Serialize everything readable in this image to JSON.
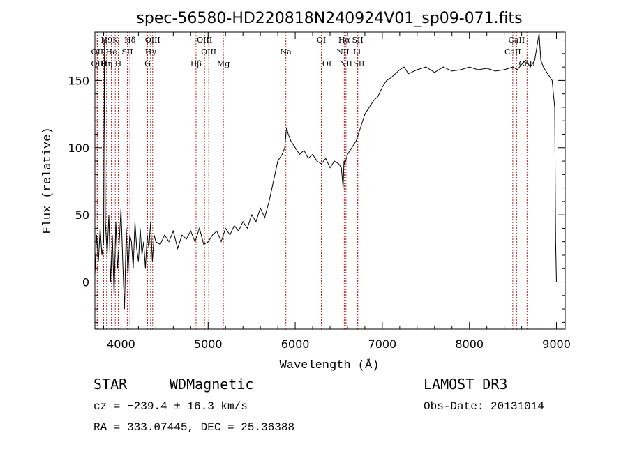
{
  "chart_data": {
    "type": "line",
    "title": "spec-56580-HD220818N240924V01_sp09-071.fits",
    "xlabel": "Wavelength (Å)",
    "ylabel": "Flux (relative)",
    "xlim": [
      3700,
      9100
    ],
    "ylim": [
      -35,
      186
    ],
    "x_ticks": [
      4000,
      5000,
      6000,
      7000,
      8000,
      9000
    ],
    "y_ticks": [
      0,
      50,
      100,
      150
    ],
    "grid": false,
    "line_color": "#000000",
    "marker_color": "#b22222",
    "series": [
      {
        "x": [
          3700,
          3720,
          3740,
          3760,
          3780,
          3800,
          3810,
          3820,
          3840,
          3860,
          3880,
          3900,
          3920,
          3940,
          3960,
          3980,
          4000,
          4020,
          4040,
          4060,
          4080,
          4100,
          4120,
          4140,
          4160,
          4180,
          4200,
          4220,
          4240,
          4260,
          4280,
          4300,
          4320,
          4340,
          4360,
          4380,
          4400,
          4450,
          4500,
          4550,
          4600,
          4650,
          4700,
          4750,
          4800,
          4850,
          4900,
          4950,
          5000,
          5050,
          5100,
          5150,
          5200,
          5250,
          5300,
          5350,
          5400,
          5450,
          5500,
          5550,
          5600,
          5650,
          5700,
          5750,
          5800,
          5850,
          5880,
          5900,
          5920,
          5950,
          6000,
          6050,
          6100,
          6150,
          6200,
          6250,
          6300,
          6350,
          6400,
          6450,
          6500,
          6530,
          6550,
          6560,
          6570,
          6600,
          6650,
          6700,
          6750,
          6800,
          6850,
          6900,
          6950,
          7000,
          7050,
          7100,
          7150,
          7200,
          7250,
          7300,
          7400,
          7500,
          7600,
          7700,
          7800,
          7900,
          8000,
          8100,
          8200,
          8300,
          8400,
          8500,
          8550,
          8600,
          8650,
          8700,
          8750,
          8800,
          8820,
          8850,
          8900,
          8950,
          8980,
          8990,
          9000
        ],
        "y": [
          5,
          35,
          15,
          40,
          20,
          30,
          180,
          45,
          20,
          50,
          0,
          35,
          -10,
          45,
          10,
          30,
          55,
          15,
          -20,
          40,
          5,
          35,
          30,
          10,
          45,
          25,
          15,
          40,
          20,
          30,
          10,
          35,
          25,
          45,
          15,
          35,
          30,
          28,
          35,
          30,
          38,
          25,
          35,
          32,
          38,
          30,
          40,
          28,
          30,
          35,
          38,
          30,
          40,
          35,
          42,
          38,
          45,
          40,
          50,
          45,
          55,
          48,
          60,
          75,
          90,
          95,
          100,
          115,
          110,
          105,
          100,
          95,
          98,
          92,
          95,
          90,
          88,
          92,
          85,
          90,
          88,
          85,
          70,
          90,
          88,
          95,
          100,
          105,
          115,
          125,
          130,
          135,
          138,
          145,
          150,
          152,
          155,
          158,
          160,
          155,
          158,
          160,
          156,
          160,
          157,
          158,
          160,
          158,
          159,
          157,
          158,
          160,
          158,
          162,
          165,
          160,
          165,
          185,
          165,
          160,
          155,
          150,
          130,
          30,
          0
        ]
      }
    ],
    "line_markers": [
      {
        "label": "H9",
        "x": 3835,
        "row": 0
      },
      {
        "label": "K",
        "x": 3934,
        "row": 0
      },
      {
        "label": "Hδ",
        "x": 4102,
        "row": 0
      },
      {
        "label": "OIII",
        "x": 4363,
        "row": 0
      },
      {
        "label": "OIII",
        "x": 4959,
        "row": 0
      },
      {
        "label": "OI",
        "x": 6300,
        "row": 0
      },
      {
        "label": "Hα",
        "x": 6563,
        "row": 0
      },
      {
        "label": "SII",
        "x": 6717,
        "row": 0
      },
      {
        "label": "CaII",
        "x": 8542,
        "row": 0
      },
      {
        "label": "OII",
        "x": 3727,
        "row": 1
      },
      {
        "label": "He",
        "x": 3889,
        "row": 1
      },
      {
        "label": "SII",
        "x": 4072,
        "row": 1
      },
      {
        "label": "Hγ",
        "x": 4340,
        "row": 1
      },
      {
        "label": "OIII",
        "x": 5007,
        "row": 1
      },
      {
        "label": "Na",
        "x": 5893,
        "row": 1
      },
      {
        "label": "NII",
        "x": 6548,
        "row": 1
      },
      {
        "label": "Li",
        "x": 6708,
        "row": 1
      },
      {
        "label": "CaII",
        "x": 8498,
        "row": 1
      },
      {
        "label": "OII",
        "x": 3727,
        "row": 2
      },
      {
        "label": "H",
        "x": 3800,
        "row": 2
      },
      {
        "label": "Hη",
        "x": 3835,
        "row": 2
      },
      {
        "label": "H",
        "x": 3968,
        "row": 2
      },
      {
        "label": "G",
        "x": 4305,
        "row": 2
      },
      {
        "label": "Hβ",
        "x": 4861,
        "row": 2
      },
      {
        "label": "Mg",
        "x": 5175,
        "row": 2
      },
      {
        "label": "OI",
        "x": 6364,
        "row": 2
      },
      {
        "label": "NII",
        "x": 6583,
        "row": 2
      },
      {
        "label": "SII",
        "x": 6731,
        "row": 2
      },
      {
        "label": "CaII",
        "x": 8662,
        "row": 2
      }
    ]
  },
  "info": {
    "object_class": "STAR",
    "subclass": "WDMagnetic",
    "survey": "LAMOST DR3",
    "redshift_line": "cz = −239.4 ± 16.3 km/s",
    "obs_date_line": "Obs-Date: 20131014",
    "coords_line": "RA = 333.07445, DEC =  25.36388"
  }
}
